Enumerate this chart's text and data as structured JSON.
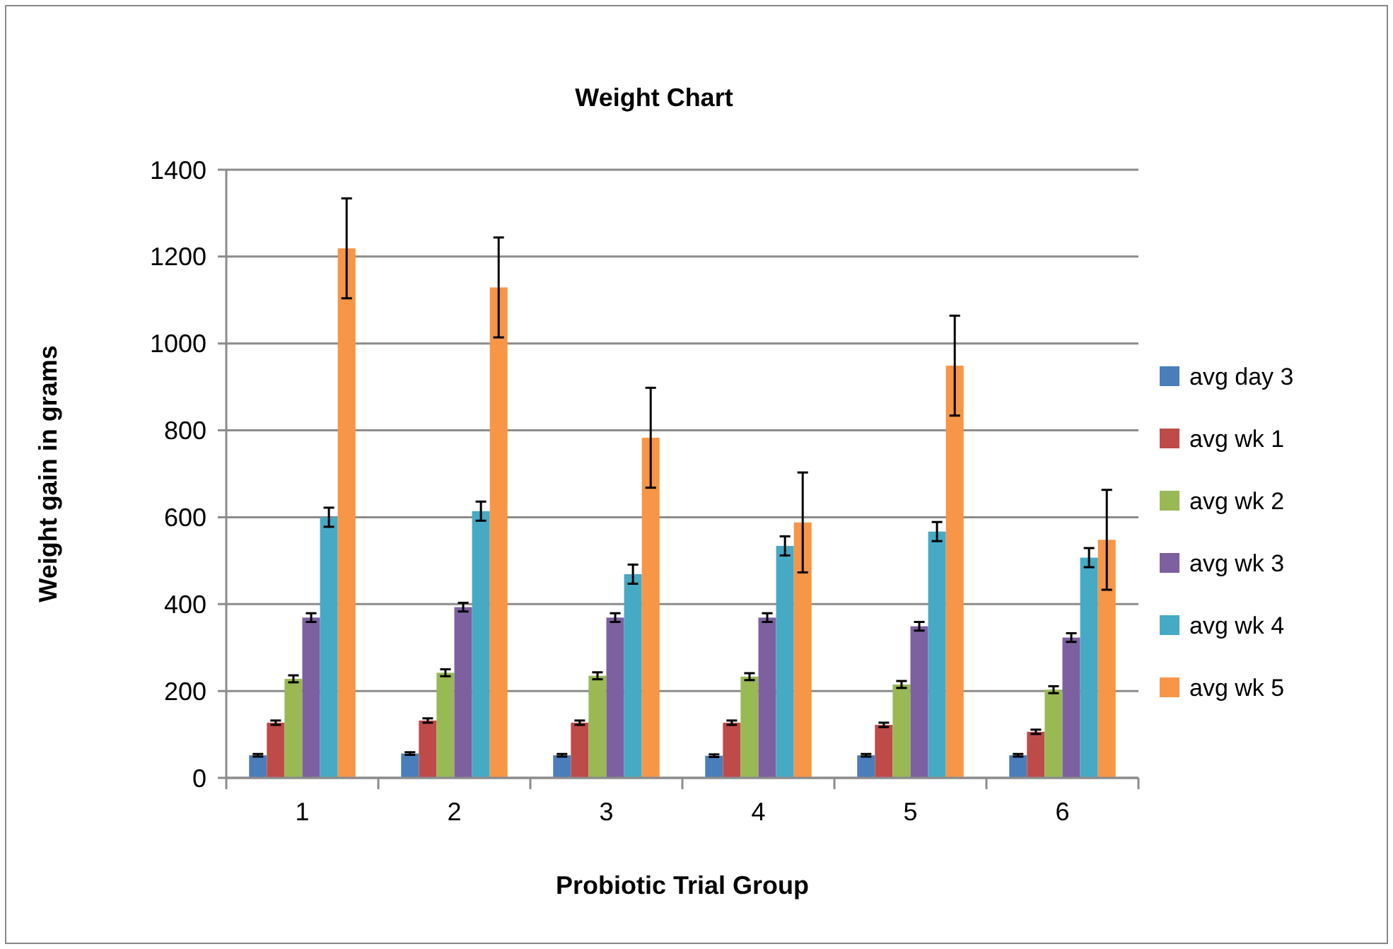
{
  "chart_data": {
    "type": "bar",
    "title": "Weight Chart",
    "xlabel": "Probiotic Trial Group",
    "ylabel": "Weight gain in grams",
    "categories": [
      "1",
      "2",
      "3",
      "4",
      "5",
      "6"
    ],
    "series": [
      {
        "name": "avg day 3",
        "color": "#4a7ebb",
        "values": [
          52,
          56,
          52,
          51,
          52,
          52
        ],
        "errors": [
          3,
          3,
          3,
          3,
          3,
          3
        ]
      },
      {
        "name": "avg wk 1",
        "color": "#be4b48",
        "values": [
          127,
          132,
          127,
          127,
          122,
          106
        ],
        "errors": [
          5,
          5,
          5,
          5,
          5,
          5
        ]
      },
      {
        "name": "avg wk 2",
        "color": "#98b954",
        "values": [
          228,
          242,
          235,
          233,
          215,
          203
        ],
        "errors": [
          8,
          8,
          8,
          8,
          8,
          8
        ]
      },
      {
        "name": "avg wk 3",
        "color": "#7d60a0",
        "values": [
          369,
          393,
          369,
          369,
          349,
          323
        ],
        "errors": [
          10,
          10,
          10,
          10,
          10,
          10
        ]
      },
      {
        "name": "avg wk 4",
        "color": "#46aac5",
        "values": [
          600,
          614,
          469,
          534,
          567,
          507
        ],
        "errors": [
          22,
          22,
          22,
          22,
          22,
          22
        ]
      },
      {
        "name": "avg wk 5",
        "color": "#f79646",
        "values": [
          1219,
          1129,
          783,
          588,
          949,
          548
        ],
        "errors": [
          115,
          115,
          115,
          115,
          115,
          115
        ]
      }
    ],
    "ylim": [
      0,
      1400
    ],
    "yticks": [
      0,
      200,
      400,
      600,
      800,
      1000,
      1200,
      1400
    ],
    "grid": "y",
    "legend": "right"
  }
}
